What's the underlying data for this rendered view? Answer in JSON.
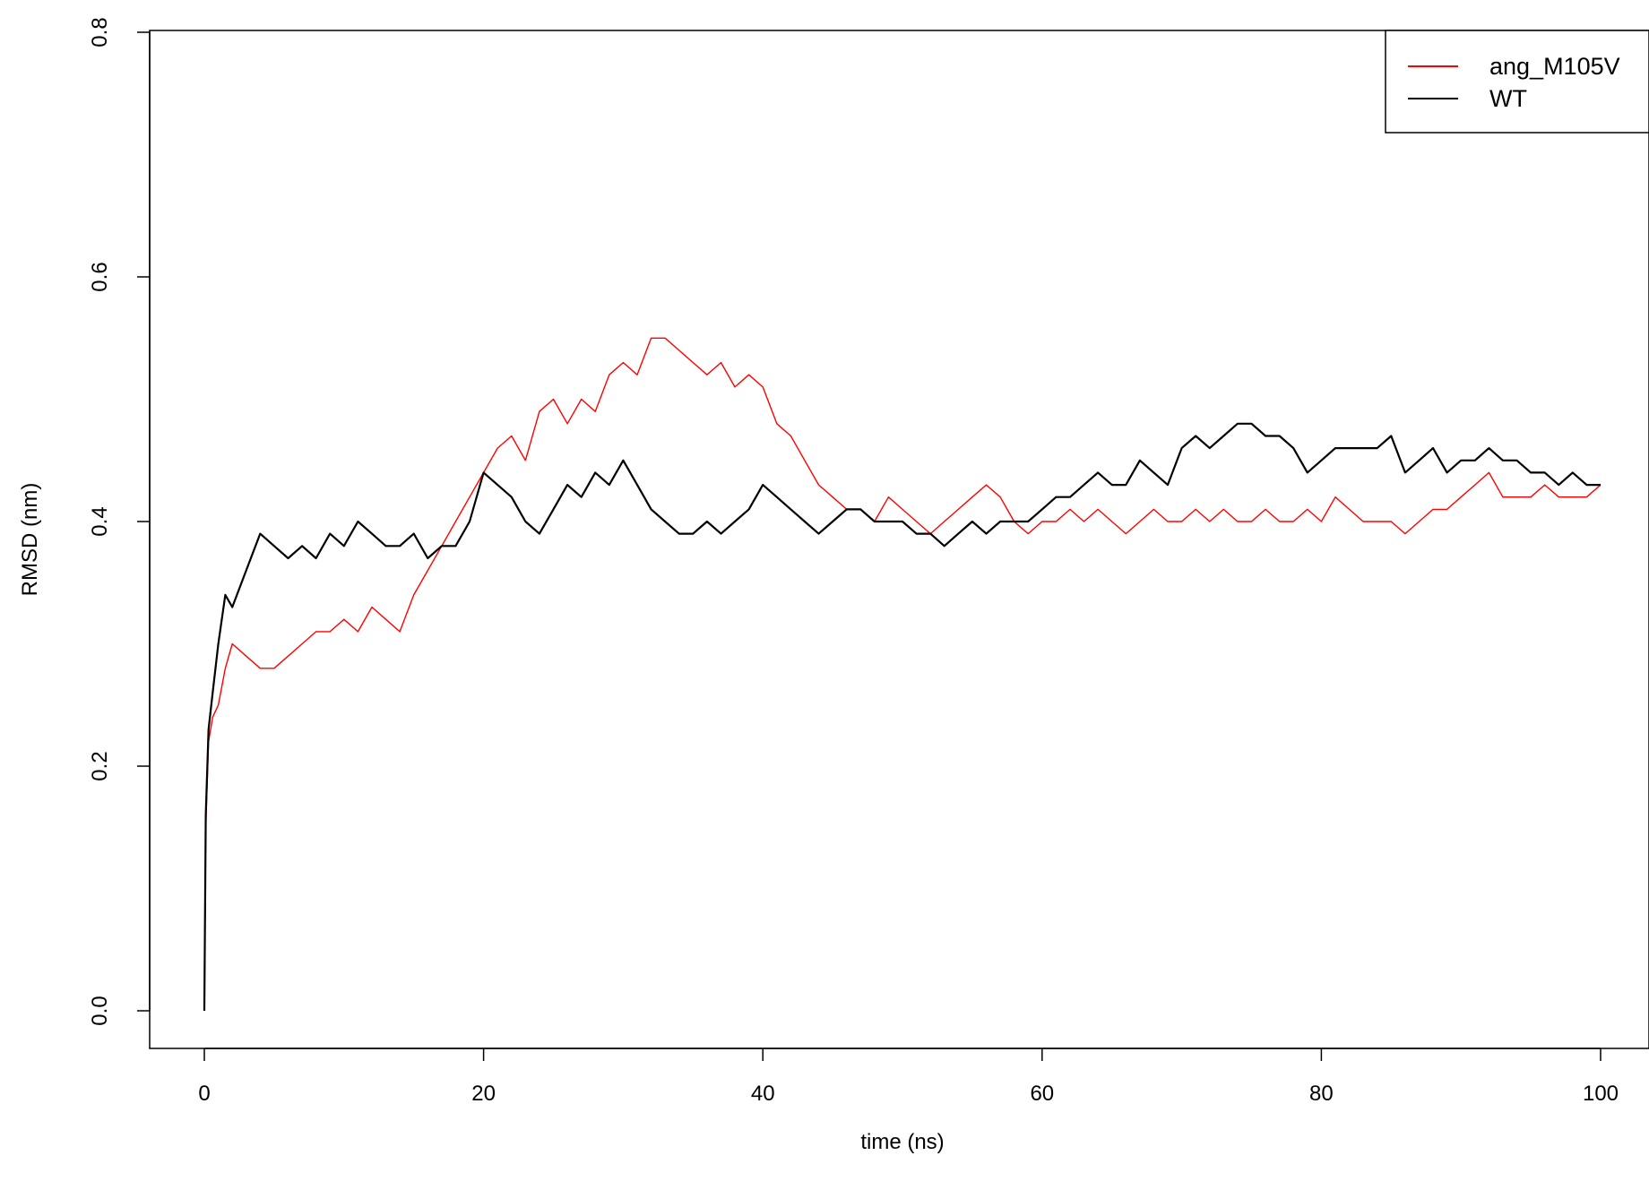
{
  "chart_data": {
    "type": "line",
    "title": "",
    "xlabel": "time (ns)",
    "ylabel": "RMSD (nm)",
    "xlim": [
      -4,
      104
    ],
    "ylim": [
      -0.03,
      0.8
    ],
    "x_ticks": [
      0,
      20,
      40,
      60,
      80,
      100
    ],
    "y_ticks": [
      0.0,
      0.2,
      0.4,
      0.6,
      0.8
    ],
    "x_tick_labels": [
      "0",
      "20",
      "40",
      "60",
      "80",
      "100"
    ],
    "y_tick_labels": [
      "0.0",
      "0.2",
      "0.4",
      "0.6",
      "0.8"
    ],
    "grid": false,
    "legend_position": "top-right",
    "series": [
      {
        "name": "ang_M105V",
        "color": "#ff0000",
        "x": [
          0,
          0.1,
          0.3,
          0.6,
          1,
          1.5,
          2,
          3,
          4,
          5,
          6,
          7,
          8,
          9,
          10,
          11,
          12,
          13,
          14,
          15,
          16,
          17,
          18,
          19,
          20,
          21,
          22,
          23,
          24,
          25,
          26,
          27,
          28,
          29,
          30,
          31,
          32,
          33,
          34,
          35,
          36,
          37,
          38,
          39,
          40,
          41,
          42,
          43,
          44,
          45,
          46,
          47,
          48,
          49,
          50,
          51,
          52,
          53,
          54,
          55,
          56,
          57,
          58,
          59,
          60,
          61,
          62,
          63,
          64,
          65,
          66,
          67,
          68,
          69,
          70,
          71,
          72,
          73,
          74,
          75,
          76,
          77,
          78,
          79,
          80,
          81,
          82,
          83,
          84,
          85,
          86,
          87,
          88,
          89,
          90,
          91,
          92,
          93,
          94,
          95,
          96,
          97,
          98,
          99,
          100
        ],
        "y": [
          0.0,
          0.15,
          0.22,
          0.24,
          0.25,
          0.28,
          0.3,
          0.29,
          0.28,
          0.28,
          0.29,
          0.3,
          0.31,
          0.31,
          0.32,
          0.31,
          0.33,
          0.32,
          0.31,
          0.34,
          0.36,
          0.38,
          0.4,
          0.42,
          0.44,
          0.46,
          0.47,
          0.45,
          0.49,
          0.5,
          0.48,
          0.5,
          0.49,
          0.52,
          0.53,
          0.52,
          0.55,
          0.55,
          0.54,
          0.53,
          0.52,
          0.53,
          0.51,
          0.52,
          0.51,
          0.48,
          0.47,
          0.45,
          0.43,
          0.42,
          0.41,
          0.41,
          0.4,
          0.42,
          0.41,
          0.4,
          0.39,
          0.4,
          0.41,
          0.42,
          0.43,
          0.42,
          0.4,
          0.39,
          0.4,
          0.4,
          0.41,
          0.4,
          0.41,
          0.4,
          0.39,
          0.4,
          0.41,
          0.4,
          0.4,
          0.41,
          0.4,
          0.41,
          0.4,
          0.4,
          0.41,
          0.4,
          0.4,
          0.41,
          0.4,
          0.42,
          0.41,
          0.4,
          0.4,
          0.4,
          0.39,
          0.4,
          0.41,
          0.41,
          0.42,
          0.43,
          0.44,
          0.42,
          0.42,
          0.42,
          0.43,
          0.42,
          0.42,
          0.42,
          0.43
        ]
      },
      {
        "name": "WT",
        "color": "#000000",
        "x": [
          0,
          0.1,
          0.3,
          0.6,
          1,
          1.5,
          2,
          3,
          4,
          5,
          6,
          7,
          8,
          9,
          10,
          11,
          12,
          13,
          14,
          15,
          16,
          17,
          18,
          19,
          20,
          21,
          22,
          23,
          24,
          25,
          26,
          27,
          28,
          29,
          30,
          31,
          32,
          33,
          34,
          35,
          36,
          37,
          38,
          39,
          40,
          41,
          42,
          43,
          44,
          45,
          46,
          47,
          48,
          49,
          50,
          51,
          52,
          53,
          54,
          55,
          56,
          57,
          58,
          59,
          60,
          61,
          62,
          63,
          64,
          65,
          66,
          67,
          68,
          69,
          70,
          71,
          72,
          73,
          74,
          75,
          76,
          77,
          78,
          79,
          80,
          81,
          82,
          83,
          84,
          85,
          86,
          87,
          88,
          89,
          90,
          91,
          92,
          93,
          94,
          95,
          96,
          97,
          98,
          99,
          100
        ],
        "y": [
          0.0,
          0.16,
          0.23,
          0.26,
          0.3,
          0.34,
          0.33,
          0.36,
          0.39,
          0.38,
          0.37,
          0.38,
          0.37,
          0.39,
          0.38,
          0.4,
          0.39,
          0.38,
          0.38,
          0.39,
          0.37,
          0.38,
          0.38,
          0.4,
          0.44,
          0.43,
          0.42,
          0.4,
          0.39,
          0.41,
          0.43,
          0.42,
          0.44,
          0.43,
          0.45,
          0.43,
          0.41,
          0.4,
          0.39,
          0.39,
          0.4,
          0.39,
          0.4,
          0.41,
          0.43,
          0.42,
          0.41,
          0.4,
          0.39,
          0.4,
          0.41,
          0.41,
          0.4,
          0.4,
          0.4,
          0.39,
          0.39,
          0.38,
          0.39,
          0.4,
          0.39,
          0.4,
          0.4,
          0.4,
          0.41,
          0.42,
          0.42,
          0.43,
          0.44,
          0.43,
          0.43,
          0.45,
          0.44,
          0.43,
          0.46,
          0.47,
          0.46,
          0.47,
          0.48,
          0.48,
          0.47,
          0.47,
          0.46,
          0.44,
          0.45,
          0.46,
          0.46,
          0.46,
          0.46,
          0.47,
          0.44,
          0.45,
          0.46,
          0.44,
          0.45,
          0.45,
          0.46,
          0.45,
          0.45,
          0.44,
          0.44,
          0.43,
          0.44,
          0.43,
          0.43
        ]
      }
    ]
  }
}
